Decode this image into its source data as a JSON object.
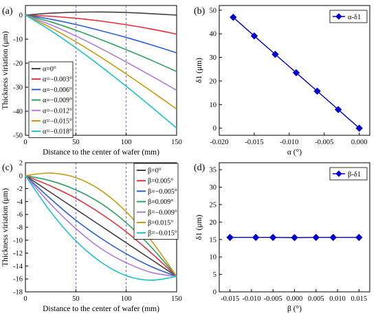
{
  "panels": {
    "a": {
      "label": "(a)"
    },
    "b": {
      "label": "(b)"
    },
    "c": {
      "label": "(c)"
    },
    "d": {
      "label": "(d)"
    }
  },
  "chart_data": [
    {
      "id": "a",
      "type": "line",
      "xlabel": "Distance to the center of wafer (mm)",
      "ylabel": "Thickness viriation (μm)",
      "xlim": [
        0,
        150
      ],
      "ylim": [
        -50,
        4
      ],
      "xticks": [
        0,
        50,
        100,
        150
      ],
      "yticks": [
        0,
        -10,
        -20,
        -30,
        -40,
        -50
      ],
      "grid": "dashed vertical lines at x=50 and x=100",
      "legend_position": "bottom-left",
      "series": [
        {
          "name": "α=0°",
          "color": "#404040",
          "x": [
            0,
            25,
            50,
            75,
            100,
            125,
            150
          ],
          "y": [
            0,
            0.8,
            1.2,
            1.3,
            1.1,
            0.6,
            0
          ]
        },
        {
          "name": "α=−0.003°",
          "color": "#e0303a",
          "x": [
            0,
            25,
            50,
            75,
            100,
            125,
            150
          ],
          "y": [
            0,
            -0.5,
            -1.3,
            -2.5,
            -4,
            -5.8,
            -7.9
          ]
        },
        {
          "name": "α=−0.006°",
          "color": "#2a5fd4",
          "x": [
            0,
            25,
            50,
            75,
            100,
            125,
            150
          ],
          "y": [
            0,
            -1.7,
            -3.9,
            -6.5,
            -9.3,
            -12.4,
            -15.7
          ]
        },
        {
          "name": "α=−0.009°",
          "color": "#2fa060",
          "x": [
            0,
            25,
            50,
            75,
            100,
            125,
            150
          ],
          "y": [
            0,
            -2.8,
            -6.3,
            -10.2,
            -14.4,
            -18.8,
            -23.5
          ]
        },
        {
          "name": "α=−0.012°",
          "color": "#b07ad8",
          "x": [
            0,
            25,
            50,
            75,
            100,
            125,
            150
          ],
          "y": [
            0,
            -4,
            -8.7,
            -13.9,
            -19.5,
            -25.3,
            -31.3
          ]
        },
        {
          "name": "α=−0.015°",
          "color": "#c89a10",
          "x": [
            0,
            25,
            50,
            75,
            100,
            125,
            150
          ],
          "y": [
            0,
            -5.2,
            -11.1,
            -17.6,
            -24.5,
            -31.7,
            -39.1
          ]
        },
        {
          "name": "α=−0.018°",
          "color": "#19c2c8",
          "x": [
            0,
            25,
            50,
            75,
            100,
            125,
            150
          ],
          "y": [
            0,
            -6.4,
            -13.6,
            -21.4,
            -29.6,
            -38.2,
            -47
          ]
        }
      ]
    },
    {
      "id": "b",
      "type": "line",
      "xlabel": "α (°)",
      "ylabel": "δ1 (μm)",
      "xlim": [
        -0.02,
        0.0015
      ],
      "ylim": [
        -3,
        52
      ],
      "xticks": [
        "-0.020",
        "-0.015",
        "-0.010",
        "-0.005",
        "0.000"
      ],
      "xtick_values": [
        -0.02,
        -0.015,
        -0.01,
        -0.005,
        0
      ],
      "yticks": [
        0,
        10,
        20,
        30,
        40,
        50
      ],
      "legend_position": "top-right",
      "series": [
        {
          "name": "α-δ1",
          "color": "#0000cc",
          "marker": "diamond",
          "x": [
            -0.018,
            -0.015,
            -0.012,
            -0.009,
            -0.006,
            -0.003,
            0
          ],
          "y": [
            47,
            39.1,
            31.3,
            23.5,
            15.7,
            7.9,
            0
          ]
        }
      ]
    },
    {
      "id": "c",
      "type": "line",
      "xlabel": "Distance to the center of wafer (mm)",
      "ylabel": "Thickness viriation (μm)",
      "xlim": [
        0,
        150
      ],
      "ylim": [
        -18,
        2
      ],
      "xticks": [
        0,
        50,
        100,
        150
      ],
      "yticks": [
        2,
        0,
        -2,
        -4,
        -6,
        -8,
        -10,
        -12,
        -14,
        -16,
        -18
      ],
      "grid": "dashed vertical lines at x=50 and x=100",
      "legend_position": "top-right",
      "series": [
        {
          "name": "β=0°",
          "color": "#404040",
          "x": [
            0,
            25,
            50,
            75,
            100,
            125,
            150
          ],
          "y": [
            0,
            -2.6,
            -5.2,
            -7.8,
            -10.4,
            -13,
            -15.6
          ]
        },
        {
          "name": "β=0.005°",
          "color": "#e0303a",
          "x": [
            0,
            25,
            50,
            75,
            100,
            125,
            150
          ],
          "y": [
            0,
            -1.6,
            -3.5,
            -5.9,
            -8.7,
            -12,
            -15.6
          ]
        },
        {
          "name": "β=−0.005°",
          "color": "#2a5fd4",
          "x": [
            0,
            25,
            50,
            75,
            100,
            125,
            150
          ],
          "y": [
            0,
            -3.6,
            -6.9,
            -9.7,
            -12.1,
            -14.1,
            -15.6
          ]
        },
        {
          "name": "β=0.009°",
          "color": "#2fa060",
          "x": [
            0,
            25,
            50,
            75,
            100,
            125,
            150
          ],
          "y": [
            0,
            -0.8,
            -2.2,
            -4.3,
            -7.3,
            -11.1,
            -15.6
          ]
        },
        {
          "name": "β=−0.009°",
          "color": "#b07ad8",
          "x": [
            0,
            25,
            50,
            75,
            100,
            125,
            150
          ],
          "y": [
            0,
            -4.4,
            -8.2,
            -11.3,
            -13.5,
            -15,
            -15.6
          ]
        },
        {
          "name": "β=0.015°",
          "color": "#c89a10",
          "x": [
            0,
            25,
            50,
            75,
            100,
            125,
            150
          ],
          "y": [
            0,
            0.4,
            -0.3,
            -2.3,
            -5.6,
            -10.1,
            -15.6
          ]
        },
        {
          "name": "β=−0.015°",
          "color": "#19c2c8",
          "x": [
            0,
            25,
            50,
            75,
            100,
            125,
            150
          ],
          "y": [
            0,
            -5.6,
            -10.1,
            -13.4,
            -15.5,
            -16.2,
            -15.6
          ]
        }
      ]
    },
    {
      "id": "d",
      "type": "line",
      "xlabel": "β (°)",
      "ylabel": "δ1 (μm)",
      "xlim": [
        -0.0175,
        0.0175
      ],
      "ylim": [
        0,
        37
      ],
      "xticks": [
        "-0.015",
        "-0.010",
        "-0.005",
        "0.000",
        "0.005",
        "0.010",
        "0.015"
      ],
      "xtick_values": [
        -0.015,
        -0.01,
        -0.005,
        0,
        0.005,
        0.01,
        0.015
      ],
      "yticks": [
        0,
        5,
        10,
        15,
        20,
        25,
        30,
        35
      ],
      "legend_position": "top-right",
      "series": [
        {
          "name": "β-δ1",
          "color": "#0000cc",
          "marker": "diamond",
          "x": [
            -0.015,
            -0.009,
            -0.005,
            0,
            0.005,
            0.009,
            0.015
          ],
          "y": [
            15.6,
            15.6,
            15.6,
            15.55,
            15.6,
            15.6,
            15.6
          ]
        }
      ]
    }
  ]
}
